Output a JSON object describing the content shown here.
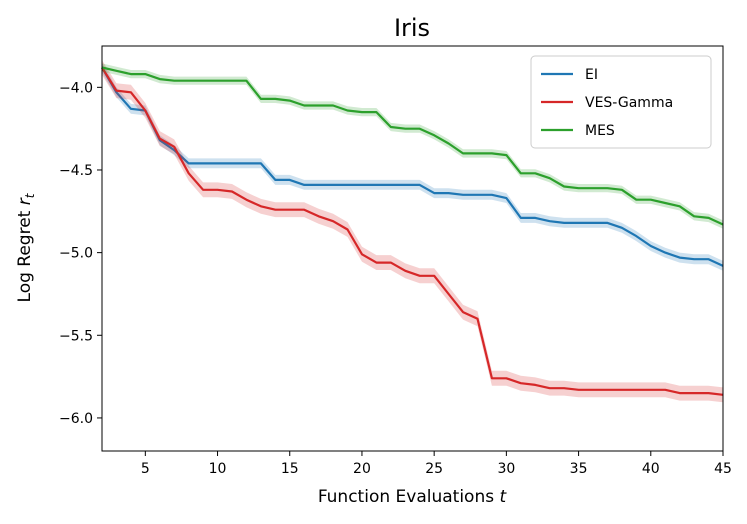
{
  "chart_data": {
    "type": "line",
    "title": "Iris",
    "xlabel": "Function Evaluations",
    "xlabel_var": "t",
    "ylabel": "Log Regret",
    "ylabel_var": "r",
    "ylabel_sub": "t",
    "xlim": [
      2,
      45
    ],
    "ylim": [
      -6.2,
      -3.75
    ],
    "xticks": [
      5,
      10,
      15,
      20,
      25,
      30,
      35,
      40,
      45
    ],
    "yticks": [
      -4.0,
      -4.5,
      -5.0,
      -5.5,
      -6.0
    ],
    "ytick_labels": [
      "−4.0",
      "−4.5",
      "−5.0",
      "−5.5",
      "−6.0"
    ],
    "legend_position": "top-right",
    "grid": false,
    "x": [
      2,
      3,
      4,
      5,
      6,
      7,
      8,
      9,
      10,
      11,
      12,
      13,
      14,
      15,
      16,
      17,
      18,
      19,
      20,
      21,
      22,
      23,
      24,
      25,
      26,
      27,
      28,
      29,
      30,
      31,
      32,
      33,
      34,
      35,
      36,
      37,
      38,
      39,
      40,
      41,
      42,
      43,
      44,
      45
    ],
    "series": [
      {
        "name": "EI",
        "color": "#1f77b4",
        "band": 0.03,
        "values": [
          -3.88,
          -4.03,
          -4.13,
          -4.14,
          -4.32,
          -4.38,
          -4.46,
          -4.46,
          -4.46,
          -4.46,
          -4.46,
          -4.46,
          -4.56,
          -4.56,
          -4.59,
          -4.59,
          -4.59,
          -4.59,
          -4.59,
          -4.59,
          -4.59,
          -4.59,
          -4.59,
          -4.64,
          -4.64,
          -4.65,
          -4.65,
          -4.65,
          -4.67,
          -4.79,
          -4.79,
          -4.81,
          -4.82,
          -4.82,
          -4.82,
          -4.82,
          -4.85,
          -4.9,
          -4.96,
          -5.0,
          -5.03,
          -5.04,
          -5.04,
          -5.08
        ]
      },
      {
        "name": "VES-Gamma",
        "color": "#d62728",
        "band": 0.045,
        "values": [
          -3.88,
          -4.02,
          -4.03,
          -4.14,
          -4.31,
          -4.36,
          -4.52,
          -4.62,
          -4.62,
          -4.63,
          -4.68,
          -4.72,
          -4.74,
          -4.74,
          -4.74,
          -4.78,
          -4.81,
          -4.86,
          -5.01,
          -5.06,
          -5.06,
          -5.11,
          -5.14,
          -5.14,
          -5.25,
          -5.36,
          -5.4,
          -5.76,
          -5.76,
          -5.79,
          -5.8,
          -5.82,
          -5.82,
          -5.83,
          -5.83,
          -5.83,
          -5.83,
          -5.83,
          -5.83,
          -5.83,
          -5.85,
          -5.85,
          -5.85,
          -5.86
        ]
      },
      {
        "name": "MES",
        "color": "#2ca02c",
        "band": 0.025,
        "values": [
          -3.88,
          -3.9,
          -3.92,
          -3.92,
          -3.95,
          -3.96,
          -3.96,
          -3.96,
          -3.96,
          -3.96,
          -3.96,
          -4.07,
          -4.07,
          -4.08,
          -4.11,
          -4.11,
          -4.11,
          -4.14,
          -4.15,
          -4.15,
          -4.24,
          -4.25,
          -4.25,
          -4.29,
          -4.34,
          -4.4,
          -4.4,
          -4.4,
          -4.41,
          -4.52,
          -4.52,
          -4.55,
          -4.6,
          -4.61,
          -4.61,
          -4.61,
          -4.62,
          -4.68,
          -4.68,
          -4.7,
          -4.72,
          -4.78,
          -4.79,
          -4.83
        ]
      }
    ]
  }
}
